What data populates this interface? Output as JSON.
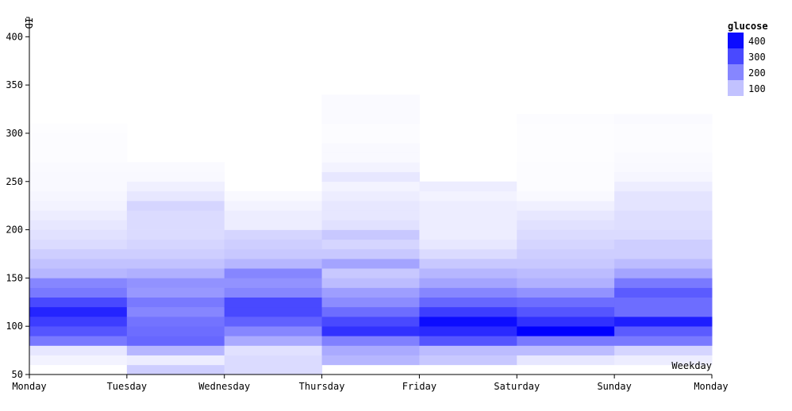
{
  "chart_data": {
    "type": "heatmap",
    "xlabel": "Weekday",
    "ylabel": "ID",
    "x_ticks": [
      "Monday",
      "Tuesday",
      "Wednesday",
      "Thursday",
      "Friday",
      "Saturday",
      "Sunday",
      "Monday"
    ],
    "y_ticks": [
      50,
      100,
      150,
      200,
      250,
      300,
      350,
      400
    ],
    "ylim": [
      50,
      420
    ],
    "cell_height": 10,
    "color_scale": {
      "low": "#ffffff",
      "high": "#0000ff",
      "domain": [
        0,
        420
      ]
    },
    "legend": {
      "title": "glucose",
      "entries": [
        {
          "label": "400",
          "value": 400
        },
        {
          "label": "300",
          "value": 300
        },
        {
          "label": "200",
          "value": 200
        },
        {
          "label": "100",
          "value": 100
        }
      ]
    },
    "columns": [
      {
        "x": "Monday",
        "cells": [
          [
            60,
            20
          ],
          [
            70,
            40
          ],
          [
            80,
            220
          ],
          [
            90,
            280
          ],
          [
            100,
            320
          ],
          [
            110,
            360
          ],
          [
            120,
            300
          ],
          [
            130,
            220
          ],
          [
            140,
            200
          ],
          [
            150,
            120
          ],
          [
            160,
            100
          ],
          [
            170,
            80
          ],
          [
            180,
            60
          ],
          [
            190,
            50
          ],
          [
            200,
            40
          ],
          [
            210,
            30
          ],
          [
            220,
            20
          ],
          [
            230,
            15
          ],
          [
            240,
            10
          ],
          [
            250,
            10
          ],
          [
            260,
            8
          ],
          [
            270,
            5
          ],
          [
            280,
            5
          ],
          [
            290,
            5
          ],
          [
            300,
            3
          ]
        ]
      },
      {
        "x": "Tuesday",
        "cells": [
          [
            50,
            80
          ],
          [
            60,
            30
          ],
          [
            70,
            120
          ],
          [
            80,
            250
          ],
          [
            90,
            240
          ],
          [
            100,
            230
          ],
          [
            110,
            200
          ],
          [
            120,
            220
          ],
          [
            130,
            170
          ],
          [
            140,
            180
          ],
          [
            150,
            130
          ],
          [
            160,
            100
          ],
          [
            170,
            80
          ],
          [
            180,
            70
          ],
          [
            190,
            60
          ],
          [
            200,
            60
          ],
          [
            210,
            60
          ],
          [
            220,
            70
          ],
          [
            230,
            40
          ],
          [
            240,
            25
          ],
          [
            250,
            10
          ],
          [
            260,
            8
          ]
        ]
      },
      {
        "x": "Wednesday",
        "cells": [
          [
            50,
            60
          ],
          [
            60,
            60
          ],
          [
            70,
            50
          ],
          [
            80,
            140
          ],
          [
            90,
            200
          ],
          [
            100,
            260
          ],
          [
            110,
            300
          ],
          [
            120,
            300
          ],
          [
            130,
            200
          ],
          [
            140,
            180
          ],
          [
            150,
            200
          ],
          [
            160,
            120
          ],
          [
            170,
            90
          ],
          [
            180,
            80
          ],
          [
            190,
            70
          ],
          [
            200,
            30
          ],
          [
            210,
            30
          ],
          [
            220,
            20
          ],
          [
            230,
            10
          ]
        ]
      },
      {
        "x": "Thursday",
        "cells": [
          [
            60,
            120
          ],
          [
            70,
            140
          ],
          [
            80,
            210
          ],
          [
            90,
            340
          ],
          [
            100,
            300
          ],
          [
            110,
            240
          ],
          [
            120,
            190
          ],
          [
            130,
            160
          ],
          [
            140,
            110
          ],
          [
            150,
            90
          ],
          [
            160,
            150
          ],
          [
            170,
            90
          ],
          [
            180,
            70
          ],
          [
            190,
            90
          ],
          [
            200,
            50
          ],
          [
            210,
            40
          ],
          [
            220,
            40
          ],
          [
            230,
            30
          ],
          [
            240,
            20
          ],
          [
            250,
            40
          ],
          [
            260,
            20
          ],
          [
            270,
            10
          ],
          [
            280,
            10
          ],
          [
            290,
            5
          ],
          [
            300,
            5
          ],
          [
            310,
            8
          ],
          [
            320,
            8
          ],
          [
            330,
            8
          ]
        ]
      },
      {
        "x": "Friday",
        "cells": [
          [
            60,
            90
          ],
          [
            70,
            110
          ],
          [
            80,
            280
          ],
          [
            90,
            350
          ],
          [
            100,
            400
          ],
          [
            110,
            320
          ],
          [
            120,
            250
          ],
          [
            130,
            200
          ],
          [
            140,
            150
          ],
          [
            150,
            120
          ],
          [
            160,
            90
          ],
          [
            170,
            60
          ],
          [
            180,
            40
          ],
          [
            190,
            30
          ],
          [
            200,
            30
          ],
          [
            210,
            30
          ],
          [
            220,
            30
          ],
          [
            230,
            20
          ],
          [
            240,
            30
          ]
        ]
      },
      {
        "x": "Saturday",
        "cells": [
          [
            60,
            40
          ],
          [
            70,
            110
          ],
          [
            80,
            220
          ],
          [
            90,
            420
          ],
          [
            100,
            340
          ],
          [
            110,
            280
          ],
          [
            120,
            240
          ],
          [
            130,
            180
          ],
          [
            140,
            130
          ],
          [
            150,
            110
          ],
          [
            160,
            90
          ],
          [
            170,
            80
          ],
          [
            180,
            70
          ],
          [
            190,
            60
          ],
          [
            200,
            50
          ],
          [
            210,
            40
          ],
          [
            220,
            25
          ],
          [
            230,
            10
          ],
          [
            240,
            5
          ],
          [
            250,
            5
          ],
          [
            260,
            5
          ],
          [
            270,
            3
          ],
          [
            280,
            3
          ],
          [
            290,
            3
          ],
          [
            300,
            3
          ],
          [
            310,
            5
          ]
        ]
      },
      {
        "x": "Sunday",
        "cells": [
          [
            60,
            30
          ],
          [
            70,
            70
          ],
          [
            80,
            220
          ],
          [
            90,
            270
          ],
          [
            100,
            370
          ],
          [
            110,
            240
          ],
          [
            120,
            240
          ],
          [
            130,
            270
          ],
          [
            140,
            220
          ],
          [
            150,
            150
          ],
          [
            160,
            110
          ],
          [
            170,
            80
          ],
          [
            180,
            80
          ],
          [
            190,
            60
          ],
          [
            200,
            55
          ],
          [
            210,
            55
          ],
          [
            220,
            45
          ],
          [
            230,
            45
          ],
          [
            240,
            30
          ],
          [
            250,
            15
          ],
          [
            260,
            10
          ],
          [
            270,
            8
          ],
          [
            280,
            5
          ],
          [
            290,
            5
          ],
          [
            300,
            5
          ],
          [
            310,
            8
          ]
        ]
      }
    ]
  }
}
